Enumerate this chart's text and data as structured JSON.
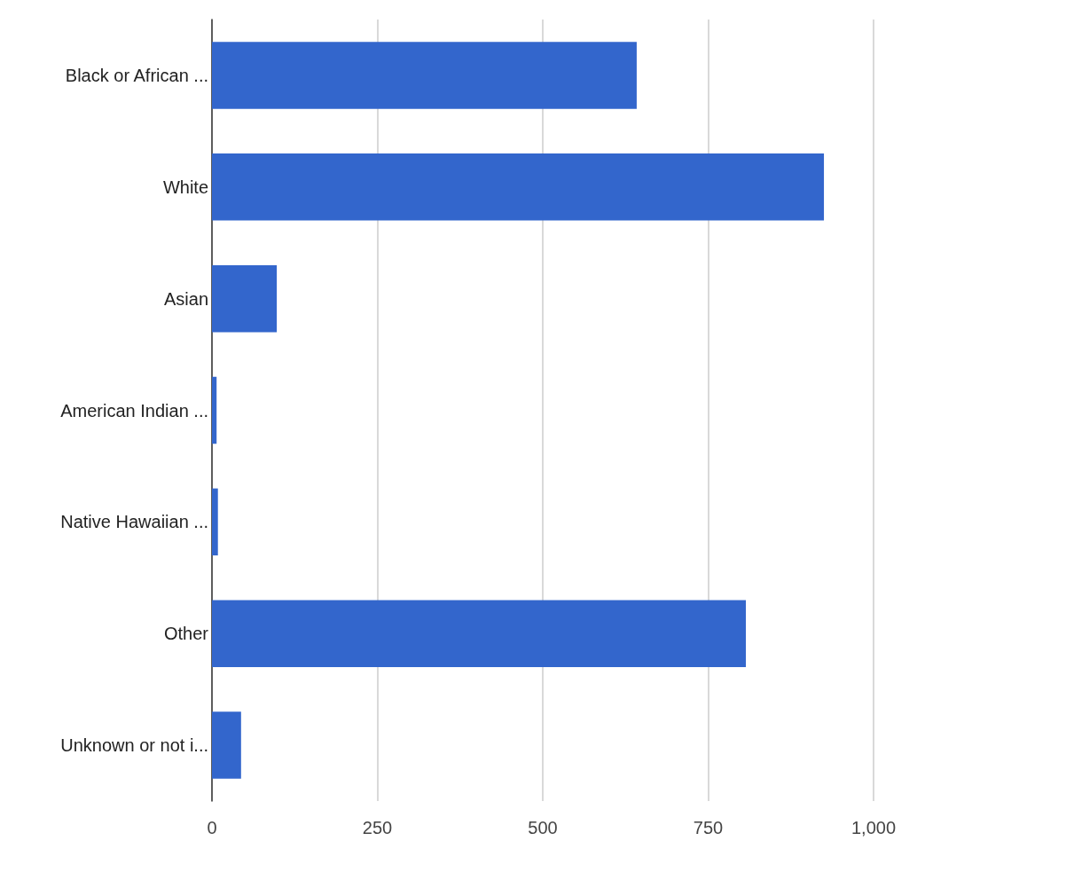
{
  "chart_data": {
    "type": "bar",
    "orientation": "horizontal",
    "categories": [
      "Black or African ...",
      "White",
      "Asian",
      "American Indian ...",
      "Native Hawaiian ...",
      "Other",
      "Unknown or not i..."
    ],
    "values": [
      642,
      925,
      98,
      7,
      9,
      807,
      44
    ],
    "color": "#3366cc",
    "xlim": [
      0,
      1000
    ],
    "xticks": [
      0,
      250,
      500,
      750,
      {
        "value": 1000,
        "label": "1,000"
      }
    ],
    "grid": "x"
  }
}
